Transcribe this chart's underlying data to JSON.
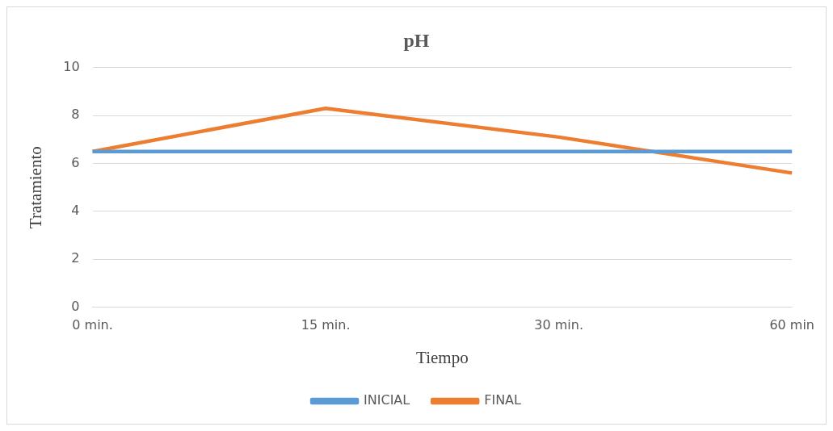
{
  "chart_data": {
    "type": "line",
    "title": "pH",
    "xlabel": "Tiempo",
    "ylabel": "Tratamiento",
    "categories": [
      "0 min.",
      "15 min.",
      "30 min.",
      "60 min"
    ],
    "series": [
      {
        "name": "INICIAL",
        "color": "#5b9bd5",
        "values": [
          6.5,
          6.5,
          6.5,
          6.5
        ]
      },
      {
        "name": "FINAL",
        "color": "#ed7d31",
        "values": [
          6.5,
          8.3,
          7.1,
          5.6
        ]
      }
    ],
    "ylim": [
      0,
      10
    ],
    "yticks": [
      0,
      2,
      4,
      6,
      8,
      10
    ],
    "grid": "y",
    "legend": "bottom",
    "marker": "none",
    "line_style": "solid"
  }
}
